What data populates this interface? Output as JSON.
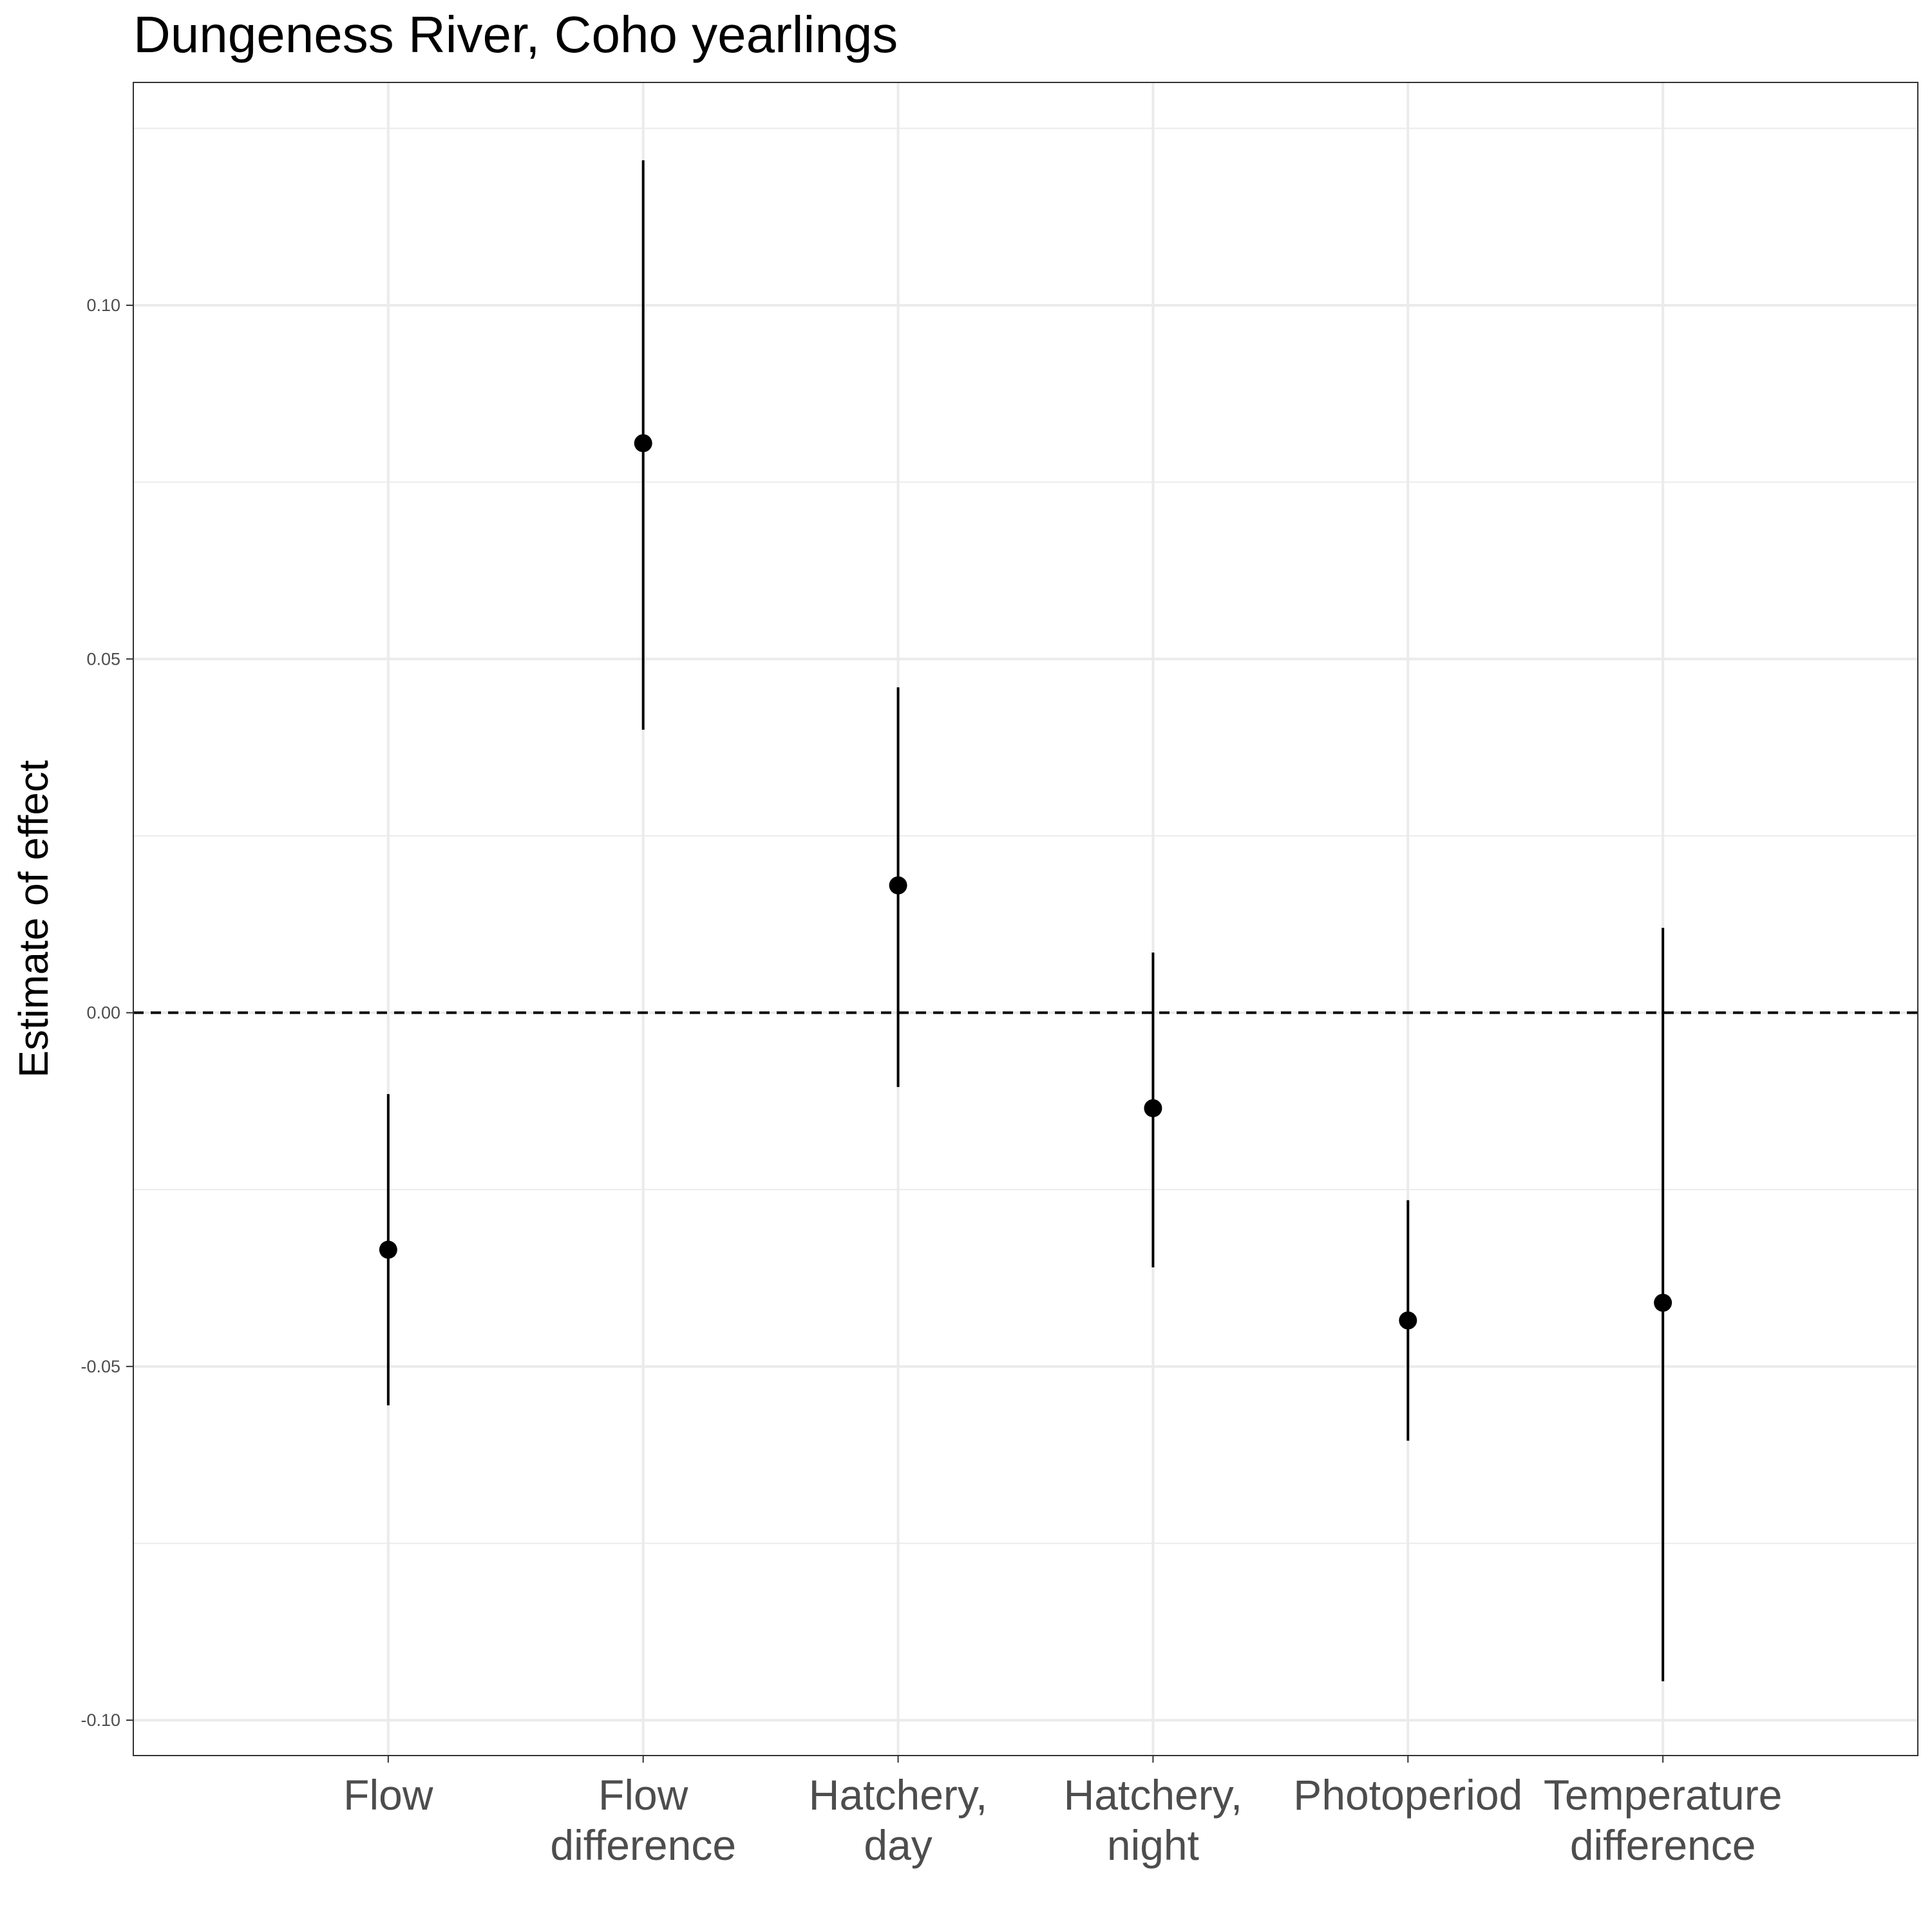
{
  "chart_data": {
    "type": "scatter",
    "title": "Dungeness River, Coho yearlings",
    "xlabel": "",
    "ylabel": "Estimate of effect",
    "categories": [
      "Flow",
      "Flow difference",
      "Hatchery, day",
      "Hatchery, night",
      "Photoperiod",
      "Temperature difference"
    ],
    "category_lines": [
      [
        "Flow"
      ],
      [
        "Flow",
        "difference"
      ],
      [
        "Hatchery,",
        "day"
      ],
      [
        "Hatchery,",
        "night"
      ],
      [
        "Photoperiod"
      ],
      [
        "Temperature",
        "difference"
      ]
    ],
    "estimates": [
      -0.0335,
      0.0805,
      0.018,
      -0.0135,
      -0.0435,
      -0.041
    ],
    "lower": [
      -0.0555,
      0.04,
      -0.0105,
      -0.036,
      -0.0605,
      -0.0945
    ],
    "upper": [
      -0.0115,
      0.1205,
      0.046,
      0.0085,
      -0.0265,
      0.012
    ],
    "yticks": [
      -0.1,
      -0.05,
      0.0,
      0.05,
      0.1
    ],
    "ytick_labels": [
      "-0.10",
      "-0.05",
      "0.00",
      "0.05",
      "0.10"
    ],
    "ylim": [
      -0.105,
      0.1315
    ],
    "reference_line": 0,
    "reference_line_style": "dashed",
    "grid": true,
    "legend": "none",
    "colors": {
      "points": "#000000",
      "grid": "#ebebeb",
      "axis_text": "#4d4d4d",
      "frame": "#333333"
    }
  }
}
